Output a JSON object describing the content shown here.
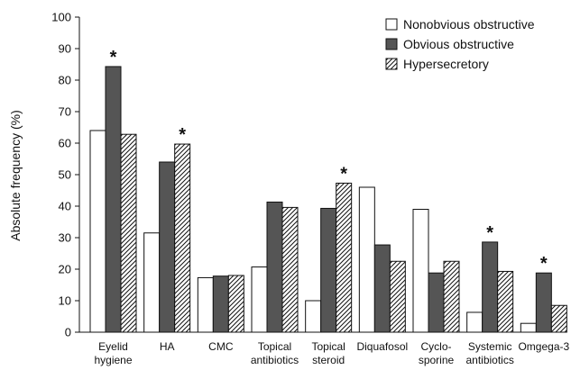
{
  "chart_data": {
    "type": "bar",
    "ylabel": "Absolute frequency (%)",
    "ylim": [
      0,
      100
    ],
    "yticks": [
      0,
      10,
      20,
      30,
      40,
      50,
      60,
      70,
      80,
      90,
      100
    ],
    "grid": false,
    "legend_position": "top-right",
    "categories": [
      [
        "Eyelid",
        "hygiene"
      ],
      [
        "HA"
      ],
      [
        "CMC"
      ],
      [
        "Topical",
        "antibiotics"
      ],
      [
        "Topical",
        "steroid"
      ],
      [
        "Diquafosol"
      ],
      [
        "Cyclo-",
        "sporine"
      ],
      [
        "Systemic",
        "antibiotics"
      ],
      [
        "Omgega-3"
      ]
    ],
    "series": [
      {
        "name": "Nonobvious obstructive",
        "style": "white",
        "values": [
          64,
          31.5,
          17.3,
          20.7,
          10,
          46,
          39,
          6.3,
          2.8
        ]
      },
      {
        "name": "Obvious obstructive",
        "style": "gray",
        "values": [
          84.3,
          54,
          17.8,
          41.3,
          39.3,
          27.7,
          18.8,
          28.6,
          18.8
        ]
      },
      {
        "name": "Hypersecretory",
        "style": "hatched",
        "values": [
          62.8,
          59.7,
          18,
          39.6,
          47.3,
          22.5,
          22.5,
          19.3,
          8.5
        ]
      }
    ],
    "significance_markers": [
      {
        "category_index": 0,
        "series_index": 1,
        "symbol": "*"
      },
      {
        "category_index": 1,
        "series_index": 2,
        "symbol": "*"
      },
      {
        "category_index": 4,
        "series_index": 2,
        "symbol": "*"
      },
      {
        "category_index": 7,
        "series_index": 1,
        "symbol": "*"
      },
      {
        "category_index": 8,
        "series_index": 1,
        "symbol": "*"
      }
    ],
    "colors": {
      "white": "#ffffff",
      "gray": "#555555",
      "hatch": "#111111",
      "stroke": "#111111"
    }
  }
}
